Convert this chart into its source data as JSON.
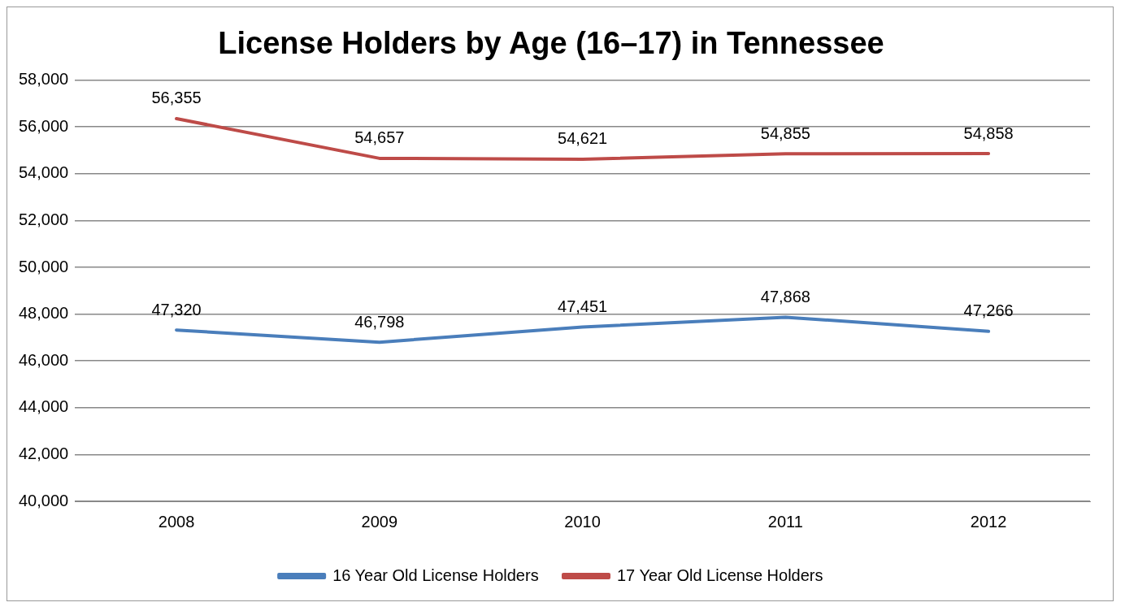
{
  "chart_data": {
    "type": "line",
    "title": "License Holders by Age (16–17) in Tennessee",
    "categories": [
      "2008",
      "2009",
      "2010",
      "2011",
      "2012"
    ],
    "series": [
      {
        "name": "16 Year Old License Holders",
        "color": "#4a7ebb",
        "values": [
          47320,
          46798,
          47451,
          47868,
          47266
        ],
        "value_labels": [
          "47,320",
          "46,798",
          "47,451",
          "47,868",
          "47,266"
        ]
      },
      {
        "name": "17 Year Old License Holders",
        "color": "#be4b48",
        "values": [
          56355,
          54657,
          54621,
          54855,
          54858
        ],
        "value_labels": [
          "56,355",
          "54,657",
          "54,621",
          "54,855",
          "54,858"
        ]
      }
    ],
    "ylim": [
      40000,
      58000
    ],
    "yticks": [
      {
        "value": 40000,
        "label": "40,000"
      },
      {
        "value": 42000,
        "label": "42,000"
      },
      {
        "value": 44000,
        "label": "44,000"
      },
      {
        "value": 46000,
        "label": "46,000"
      },
      {
        "value": 48000,
        "label": "48,000"
      },
      {
        "value": 50000,
        "label": "50,000"
      },
      {
        "value": 52000,
        "label": "52,000"
      },
      {
        "value": 54000,
        "label": "54,000"
      },
      {
        "value": 56000,
        "label": "56,000"
      },
      {
        "value": 58000,
        "label": "58,000"
      }
    ],
    "grid": "y",
    "legend": "bottom",
    "marker": "none",
    "line_style": "solid"
  }
}
